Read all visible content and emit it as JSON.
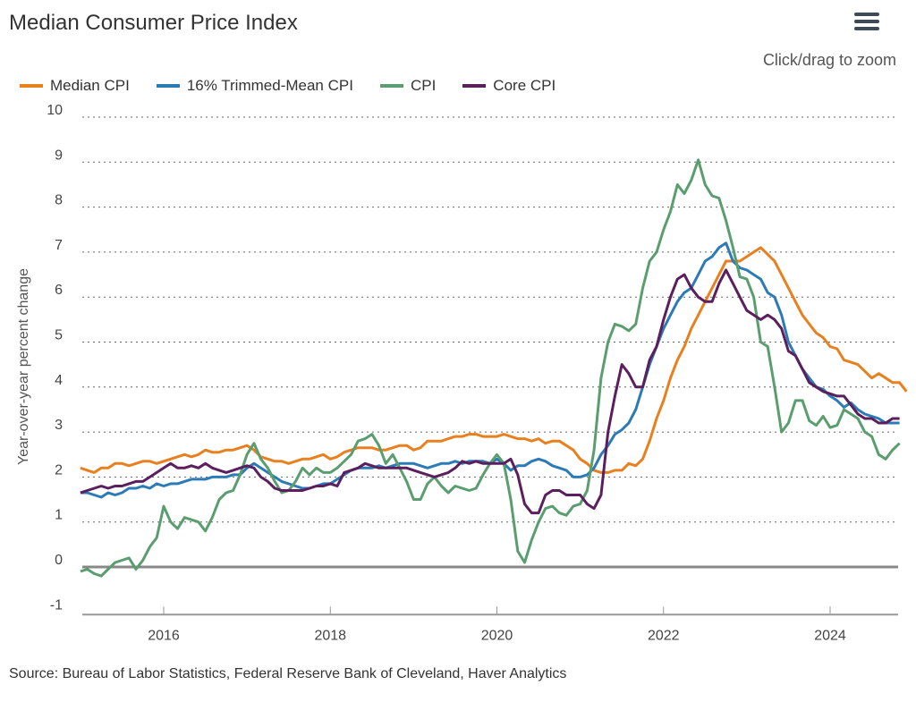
{
  "header": {
    "title": "Median Consumer Price Index",
    "menu_icon": "hamburger-menu-icon",
    "zoom_hint": "Click/drag to zoom"
  },
  "footer": {
    "source": "Source: Bureau of Labor Statistics, Federal Reserve Bank of Cleveland, Haver Analytics"
  },
  "chart_data": {
    "type": "line",
    "title": "Median Consumer Price Index",
    "xlabel": "",
    "ylabel": "Year-over-year percent change",
    "x_start": "2015-01",
    "x_frequency": "monthly",
    "x_ticks": [
      "2016",
      "2018",
      "2020",
      "2022",
      "2024"
    ],
    "y_ticks": [
      -1,
      0,
      1,
      2,
      3,
      4,
      5,
      6,
      7,
      8,
      9,
      10
    ],
    "ylim": [
      -1,
      10
    ],
    "grid": "horizontal dotted",
    "legend_position": "top-left",
    "series": [
      {
        "name": "Median CPI",
        "color": "#e8801f",
        "values": [
          2.2,
          2.15,
          2.1,
          2.2,
          2.2,
          2.3,
          2.3,
          2.25,
          2.3,
          2.35,
          2.35,
          2.3,
          2.35,
          2.4,
          2.45,
          2.5,
          2.45,
          2.5,
          2.6,
          2.55,
          2.55,
          2.6,
          2.6,
          2.65,
          2.7,
          2.6,
          2.45,
          2.4,
          2.35,
          2.35,
          2.3,
          2.35,
          2.4,
          2.4,
          2.45,
          2.5,
          2.4,
          2.45,
          2.55,
          2.6,
          2.65,
          2.65,
          2.65,
          2.6,
          2.6,
          2.65,
          2.7,
          2.7,
          2.6,
          2.65,
          2.8,
          2.8,
          2.8,
          2.85,
          2.9,
          2.9,
          2.95,
          2.95,
          2.9,
          2.9,
          2.9,
          2.95,
          2.9,
          2.85,
          2.85,
          2.8,
          2.85,
          2.75,
          2.8,
          2.8,
          2.7,
          2.6,
          2.4,
          2.3,
          2.15,
          2.1,
          2.1,
          2.15,
          2.15,
          2.3,
          2.25,
          2.4,
          2.8,
          3.3,
          3.7,
          4.2,
          4.6,
          4.9,
          5.3,
          5.6,
          5.9,
          6.2,
          6.5,
          6.8,
          6.8,
          6.8,
          6.9,
          7.0,
          7.1,
          6.95,
          6.8,
          6.5,
          6.2,
          5.9,
          5.6,
          5.4,
          5.2,
          5.1,
          4.9,
          4.85,
          4.6,
          4.55,
          4.5,
          4.35,
          4.2,
          4.3,
          4.2,
          4.1,
          4.1,
          3.9
        ]
      },
      {
        "name": "16% Trimmed-Mean CPI",
        "color": "#2c7bb6",
        "values": [
          1.65,
          1.65,
          1.6,
          1.55,
          1.65,
          1.6,
          1.65,
          1.75,
          1.75,
          1.8,
          1.75,
          1.85,
          1.8,
          1.85,
          1.85,
          1.9,
          1.95,
          1.95,
          1.95,
          2.0,
          2.0,
          2.0,
          2.05,
          2.05,
          2.2,
          2.3,
          2.2,
          2.1,
          2.0,
          1.9,
          1.85,
          1.8,
          1.75,
          1.75,
          1.8,
          1.85,
          1.85,
          1.95,
          2.05,
          2.15,
          2.2,
          2.2,
          2.2,
          2.25,
          2.2,
          2.25,
          2.3,
          2.3,
          2.3,
          2.25,
          2.2,
          2.25,
          2.3,
          2.3,
          2.35,
          2.3,
          2.35,
          2.35,
          2.35,
          2.3,
          2.4,
          2.3,
          2.15,
          2.25,
          2.25,
          2.35,
          2.4,
          2.35,
          2.25,
          2.2,
          2.15,
          2.0,
          2.0,
          2.05,
          2.2,
          2.5,
          2.7,
          2.95,
          3.05,
          3.2,
          3.5,
          4.0,
          4.5,
          4.9,
          5.3,
          5.6,
          5.9,
          6.1,
          6.2,
          6.5,
          6.8,
          6.9,
          7.1,
          7.2,
          6.8,
          6.65,
          6.6,
          6.5,
          6.4,
          6.1,
          6.0,
          5.6,
          5.0,
          4.7,
          4.4,
          4.2,
          4.0,
          3.95,
          3.8,
          3.7,
          3.55,
          3.65,
          3.5,
          3.4,
          3.35,
          3.3,
          3.2,
          3.2,
          3.2
        ]
      },
      {
        "name": "CPI",
        "color": "#5a9e6f",
        "values": [
          -0.1,
          -0.05,
          -0.15,
          -0.2,
          -0.05,
          0.1,
          0.15,
          0.2,
          -0.05,
          0.15,
          0.45,
          0.65,
          1.35,
          1.0,
          0.85,
          1.1,
          1.05,
          1.0,
          0.8,
          1.1,
          1.5,
          1.65,
          1.7,
          2.05,
          2.5,
          2.75,
          2.4,
          2.2,
          1.9,
          1.65,
          1.7,
          1.9,
          2.2,
          2.05,
          2.2,
          2.1,
          2.1,
          2.2,
          2.35,
          2.5,
          2.8,
          2.85,
          2.95,
          2.7,
          2.3,
          2.5,
          2.2,
          1.9,
          1.5,
          1.5,
          1.85,
          2.0,
          1.8,
          1.65,
          1.8,
          1.75,
          1.7,
          1.75,
          2.05,
          2.3,
          2.5,
          2.3,
          1.5,
          0.35,
          0.1,
          0.6,
          1.0,
          1.3,
          1.35,
          1.2,
          1.15,
          1.35,
          1.4,
          1.7,
          2.6,
          4.2,
          5.0,
          5.4,
          5.35,
          5.25,
          5.4,
          6.2,
          6.8,
          7.0,
          7.5,
          7.9,
          8.5,
          8.3,
          8.6,
          9.05,
          8.5,
          8.25,
          8.2,
          7.7,
          7.1,
          6.45,
          6.4,
          6.0,
          5.0,
          4.9,
          4.0,
          3.0,
          3.2,
          3.7,
          3.7,
          3.25,
          3.15,
          3.35,
          3.1,
          3.15,
          3.5,
          3.4,
          3.3,
          3.0,
          2.9,
          2.5,
          2.4,
          2.6,
          2.75
        ]
      },
      {
        "name": "Core CPI",
        "color": "#5b1f5e",
        "values": [
          1.65,
          1.7,
          1.75,
          1.8,
          1.75,
          1.8,
          1.8,
          1.85,
          1.9,
          1.9,
          2.0,
          2.1,
          2.2,
          2.3,
          2.2,
          2.2,
          2.25,
          2.2,
          2.3,
          2.2,
          2.15,
          2.1,
          2.15,
          2.2,
          2.25,
          2.2,
          2.0,
          1.9,
          1.75,
          1.7,
          1.7,
          1.7,
          1.7,
          1.75,
          1.8,
          1.8,
          1.85,
          1.8,
          2.1,
          2.15,
          2.2,
          2.3,
          2.25,
          2.2,
          2.2,
          2.2,
          2.2,
          2.2,
          2.15,
          2.1,
          2.05,
          2.0,
          2.05,
          2.1,
          2.2,
          2.35,
          2.3,
          2.35,
          2.3,
          2.3,
          2.3,
          2.3,
          2.4,
          2.05,
          1.4,
          1.2,
          1.2,
          1.6,
          1.7,
          1.7,
          1.6,
          1.6,
          1.6,
          1.4,
          1.3,
          1.6,
          3.0,
          3.8,
          4.5,
          4.3,
          4.0,
          4.0,
          4.6,
          4.9,
          5.5,
          6.0,
          6.4,
          6.5,
          6.2,
          6.0,
          5.9,
          5.9,
          6.3,
          6.6,
          6.3,
          6.0,
          5.7,
          5.6,
          5.5,
          5.6,
          5.5,
          5.3,
          4.8,
          4.7,
          4.4,
          4.1,
          4.0,
          3.9,
          3.85,
          3.8,
          3.8,
          3.6,
          3.4,
          3.3,
          3.3,
          3.2,
          3.2,
          3.3,
          3.3
        ]
      }
    ]
  }
}
